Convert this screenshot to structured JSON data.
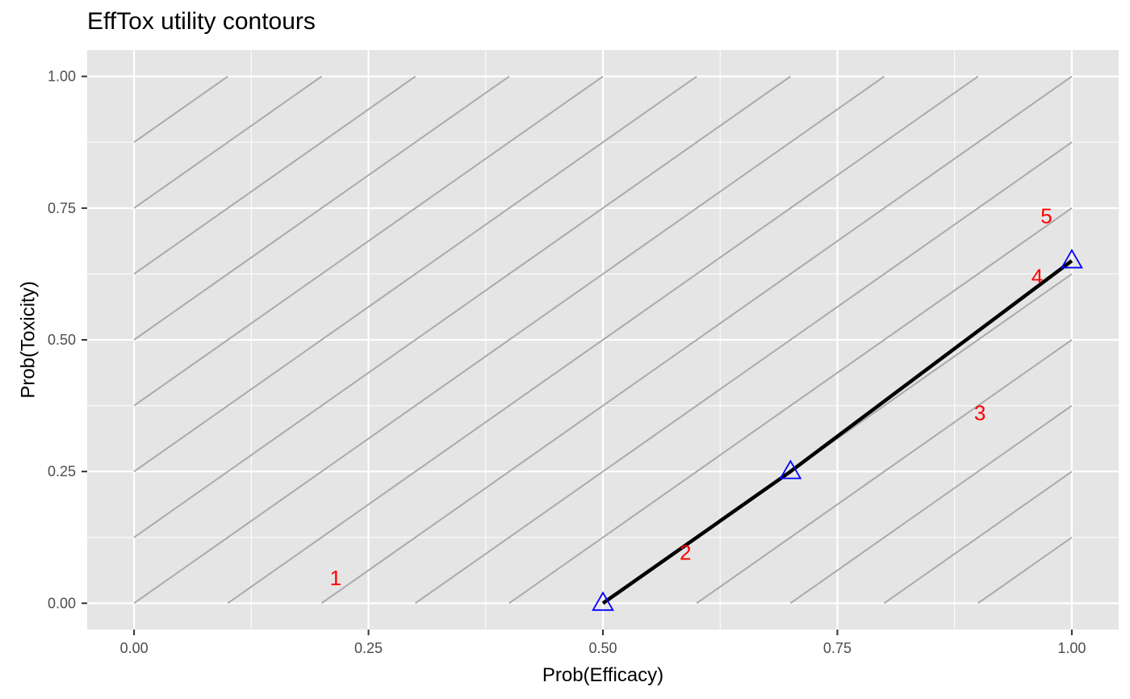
{
  "chart_data": {
    "type": "line",
    "title": "EffTox utility contours",
    "xlabel": "Prob(Efficacy)",
    "ylabel": "Prob(Toxicity)",
    "xlim": [
      -0.05,
      1.05
    ],
    "ylim": [
      -0.05,
      1.05
    ],
    "x_ticks": [
      0.0,
      0.25,
      0.5,
      0.75,
      1.0
    ],
    "x_tick_labels": [
      "0.00",
      "0.25",
      "0.50",
      "0.75",
      "1.00"
    ],
    "y_ticks": [
      0.0,
      0.25,
      0.5,
      0.75,
      1.0
    ],
    "y_tick_labels": [
      "0.00",
      "0.25",
      "0.50",
      "0.75",
      "1.00"
    ],
    "grid": true,
    "contour_color": "#aaaaaa",
    "contours": {
      "slope": 1.25,
      "intercepts": [
        0.875,
        0.75,
        0.625,
        0.5,
        0.375,
        0.25,
        0.125,
        0.0,
        -0.125,
        -0.25,
        -0.375,
        -0.5,
        -0.625,
        -0.75,
        -0.875,
        -1.0,
        -1.125
      ]
    },
    "series": [
      {
        "color": "#000000",
        "marker": "triangle-open",
        "marker_color": "#0000ff",
        "x": [
          0.5,
          0.7,
          1.0
        ],
        "y": [
          0.0,
          0.25,
          0.65
        ]
      }
    ],
    "annotations": [
      {
        "text": "1",
        "x": 0.215,
        "y": 0.045,
        "color": "#ff0000"
      },
      {
        "text": "2",
        "x": 0.588,
        "y": 0.093,
        "color": "#ff0000"
      },
      {
        "text": "3",
        "x": 0.902,
        "y": 0.358,
        "color": "#ff0000"
      },
      {
        "text": "4",
        "x": 0.963,
        "y": 0.617,
        "color": "#ff0000"
      },
      {
        "text": "5",
        "x": 0.973,
        "y": 0.732,
        "color": "#ff0000"
      }
    ],
    "panel_background": "#e5e5e5",
    "grid_color": "#ffffff"
  }
}
